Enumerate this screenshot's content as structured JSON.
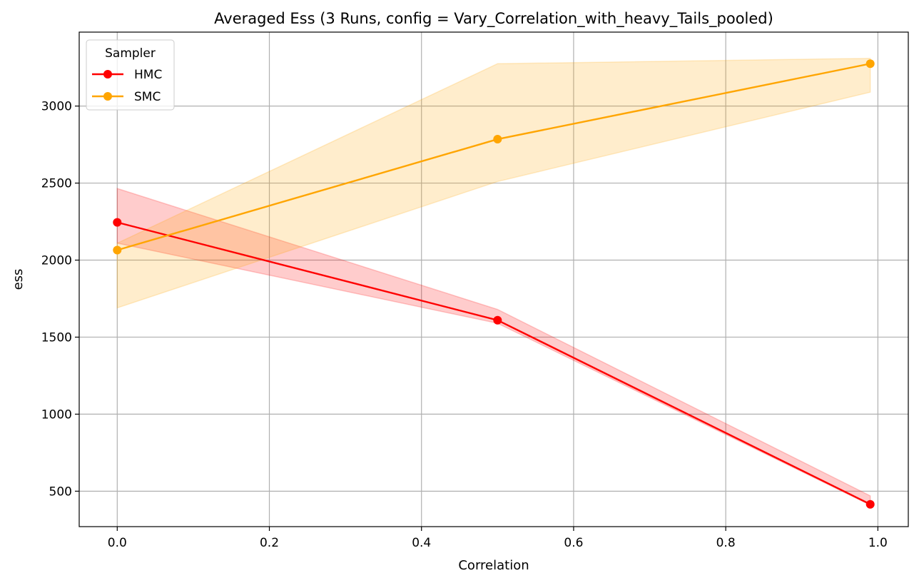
{
  "chart_data": {
    "type": "line",
    "title": "Averaged Ess (3 Runs, config = Vary_Correlation_with_heavy_Tails_pooled)",
    "xlabel": "Correlation",
    "ylabel": "ess",
    "xlim": [
      -0.05,
      1.04
    ],
    "ylim": [
      270,
      3480
    ],
    "xticks": [
      0.0,
      0.2,
      0.4,
      0.6,
      0.8,
      1.0
    ],
    "xtick_labels": [
      "0.0",
      "0.2",
      "0.4",
      "0.6",
      "0.8",
      "1.0"
    ],
    "yticks": [
      500,
      1000,
      1500,
      2000,
      2500,
      3000
    ],
    "ytick_labels": [
      "500",
      "1000",
      "1500",
      "2000",
      "2500",
      "3000"
    ],
    "grid": true,
    "legend": {
      "title": "Sampler",
      "placement": "top-left"
    },
    "x": [
      0.0,
      0.5,
      0.99
    ],
    "series": [
      {
        "name": "HMC",
        "color": "#ff0000",
        "values": [
          2245,
          1610,
          415
        ],
        "band_lower": [
          2110,
          1590,
          410
        ],
        "band_upper": [
          2465,
          1680,
          470
        ]
      },
      {
        "name": "SMC",
        "color": "#ffa500",
        "values": [
          2065,
          2785,
          3275
        ],
        "band_lower": [
          1690,
          2510,
          3090
        ],
        "band_upper": [
          2110,
          3275,
          3310
        ]
      }
    ]
  }
}
